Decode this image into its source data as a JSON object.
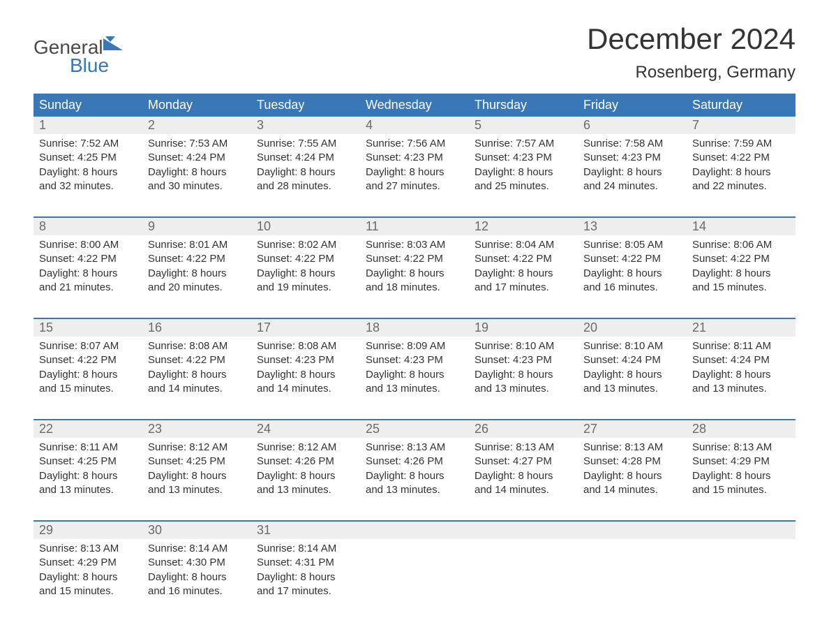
{
  "logo": {
    "word1": "General",
    "word2": "Blue",
    "flag_color": "#3a77b7",
    "text_color1": "#4a4a4a",
    "text_color2": "#3a77b7"
  },
  "title": {
    "month": "December 2024",
    "location": "Rosenberg, Germany",
    "title_fontsize": 42,
    "location_fontsize": 24,
    "title_color": "#333333"
  },
  "colors": {
    "header_bg": "#3a77b7",
    "header_text": "#ffffff",
    "daynum_bg": "#eeeeee",
    "daynum_text": "#6a6a6a",
    "body_text": "#333333",
    "week_border": "#3a77b7",
    "page_bg": "#ffffff"
  },
  "layout": {
    "columns": 7,
    "body_fontsize": 15,
    "header_fontsize": 18,
    "daynum_fontsize": 18
  },
  "day_names": [
    "Sunday",
    "Monday",
    "Tuesday",
    "Wednesday",
    "Thursday",
    "Friday",
    "Saturday"
  ],
  "weeks": [
    {
      "days": [
        {
          "n": "1",
          "sunrise": "Sunrise: 7:52 AM",
          "sunset": "Sunset: 4:25 PM",
          "dl1": "Daylight: 8 hours",
          "dl2": "and 32 minutes."
        },
        {
          "n": "2",
          "sunrise": "Sunrise: 7:53 AM",
          "sunset": "Sunset: 4:24 PM",
          "dl1": "Daylight: 8 hours",
          "dl2": "and 30 minutes."
        },
        {
          "n": "3",
          "sunrise": "Sunrise: 7:55 AM",
          "sunset": "Sunset: 4:24 PM",
          "dl1": "Daylight: 8 hours",
          "dl2": "and 28 minutes."
        },
        {
          "n": "4",
          "sunrise": "Sunrise: 7:56 AM",
          "sunset": "Sunset: 4:23 PM",
          "dl1": "Daylight: 8 hours",
          "dl2": "and 27 minutes."
        },
        {
          "n": "5",
          "sunrise": "Sunrise: 7:57 AM",
          "sunset": "Sunset: 4:23 PM",
          "dl1": "Daylight: 8 hours",
          "dl2": "and 25 minutes."
        },
        {
          "n": "6",
          "sunrise": "Sunrise: 7:58 AM",
          "sunset": "Sunset: 4:23 PM",
          "dl1": "Daylight: 8 hours",
          "dl2": "and 24 minutes."
        },
        {
          "n": "7",
          "sunrise": "Sunrise: 7:59 AM",
          "sunset": "Sunset: 4:22 PM",
          "dl1": "Daylight: 8 hours",
          "dl2": "and 22 minutes."
        }
      ]
    },
    {
      "days": [
        {
          "n": "8",
          "sunrise": "Sunrise: 8:00 AM",
          "sunset": "Sunset: 4:22 PM",
          "dl1": "Daylight: 8 hours",
          "dl2": "and 21 minutes."
        },
        {
          "n": "9",
          "sunrise": "Sunrise: 8:01 AM",
          "sunset": "Sunset: 4:22 PM",
          "dl1": "Daylight: 8 hours",
          "dl2": "and 20 minutes."
        },
        {
          "n": "10",
          "sunrise": "Sunrise: 8:02 AM",
          "sunset": "Sunset: 4:22 PM",
          "dl1": "Daylight: 8 hours",
          "dl2": "and 19 minutes."
        },
        {
          "n": "11",
          "sunrise": "Sunrise: 8:03 AM",
          "sunset": "Sunset: 4:22 PM",
          "dl1": "Daylight: 8 hours",
          "dl2": "and 18 minutes."
        },
        {
          "n": "12",
          "sunrise": "Sunrise: 8:04 AM",
          "sunset": "Sunset: 4:22 PM",
          "dl1": "Daylight: 8 hours",
          "dl2": "and 17 minutes."
        },
        {
          "n": "13",
          "sunrise": "Sunrise: 8:05 AM",
          "sunset": "Sunset: 4:22 PM",
          "dl1": "Daylight: 8 hours",
          "dl2": "and 16 minutes."
        },
        {
          "n": "14",
          "sunrise": "Sunrise: 8:06 AM",
          "sunset": "Sunset: 4:22 PM",
          "dl1": "Daylight: 8 hours",
          "dl2": "and 15 minutes."
        }
      ]
    },
    {
      "days": [
        {
          "n": "15",
          "sunrise": "Sunrise: 8:07 AM",
          "sunset": "Sunset: 4:22 PM",
          "dl1": "Daylight: 8 hours",
          "dl2": "and 15 minutes."
        },
        {
          "n": "16",
          "sunrise": "Sunrise: 8:08 AM",
          "sunset": "Sunset: 4:22 PM",
          "dl1": "Daylight: 8 hours",
          "dl2": "and 14 minutes."
        },
        {
          "n": "17",
          "sunrise": "Sunrise: 8:08 AM",
          "sunset": "Sunset: 4:23 PM",
          "dl1": "Daylight: 8 hours",
          "dl2": "and 14 minutes."
        },
        {
          "n": "18",
          "sunrise": "Sunrise: 8:09 AM",
          "sunset": "Sunset: 4:23 PM",
          "dl1": "Daylight: 8 hours",
          "dl2": "and 13 minutes."
        },
        {
          "n": "19",
          "sunrise": "Sunrise: 8:10 AM",
          "sunset": "Sunset: 4:23 PM",
          "dl1": "Daylight: 8 hours",
          "dl2": "and 13 minutes."
        },
        {
          "n": "20",
          "sunrise": "Sunrise: 8:10 AM",
          "sunset": "Sunset: 4:24 PM",
          "dl1": "Daylight: 8 hours",
          "dl2": "and 13 minutes."
        },
        {
          "n": "21",
          "sunrise": "Sunrise: 8:11 AM",
          "sunset": "Sunset: 4:24 PM",
          "dl1": "Daylight: 8 hours",
          "dl2": "and 13 minutes."
        }
      ]
    },
    {
      "days": [
        {
          "n": "22",
          "sunrise": "Sunrise: 8:11 AM",
          "sunset": "Sunset: 4:25 PM",
          "dl1": "Daylight: 8 hours",
          "dl2": "and 13 minutes."
        },
        {
          "n": "23",
          "sunrise": "Sunrise: 8:12 AM",
          "sunset": "Sunset: 4:25 PM",
          "dl1": "Daylight: 8 hours",
          "dl2": "and 13 minutes."
        },
        {
          "n": "24",
          "sunrise": "Sunrise: 8:12 AM",
          "sunset": "Sunset: 4:26 PM",
          "dl1": "Daylight: 8 hours",
          "dl2": "and 13 minutes."
        },
        {
          "n": "25",
          "sunrise": "Sunrise: 8:13 AM",
          "sunset": "Sunset: 4:26 PM",
          "dl1": "Daylight: 8 hours",
          "dl2": "and 13 minutes."
        },
        {
          "n": "26",
          "sunrise": "Sunrise: 8:13 AM",
          "sunset": "Sunset: 4:27 PM",
          "dl1": "Daylight: 8 hours",
          "dl2": "and 14 minutes."
        },
        {
          "n": "27",
          "sunrise": "Sunrise: 8:13 AM",
          "sunset": "Sunset: 4:28 PM",
          "dl1": "Daylight: 8 hours",
          "dl2": "and 14 minutes."
        },
        {
          "n": "28",
          "sunrise": "Sunrise: 8:13 AM",
          "sunset": "Sunset: 4:29 PM",
          "dl1": "Daylight: 8 hours",
          "dl2": "and 15 minutes."
        }
      ]
    },
    {
      "days": [
        {
          "n": "29",
          "sunrise": "Sunrise: 8:13 AM",
          "sunset": "Sunset: 4:29 PM",
          "dl1": "Daylight: 8 hours",
          "dl2": "and 15 minutes."
        },
        {
          "n": "30",
          "sunrise": "Sunrise: 8:14 AM",
          "sunset": "Sunset: 4:30 PM",
          "dl1": "Daylight: 8 hours",
          "dl2": "and 16 minutes."
        },
        {
          "n": "31",
          "sunrise": "Sunrise: 8:14 AM",
          "sunset": "Sunset: 4:31 PM",
          "dl1": "Daylight: 8 hours",
          "dl2": "and 17 minutes."
        },
        {
          "n": "",
          "sunrise": "",
          "sunset": "",
          "dl1": "",
          "dl2": ""
        },
        {
          "n": "",
          "sunrise": "",
          "sunset": "",
          "dl1": "",
          "dl2": ""
        },
        {
          "n": "",
          "sunrise": "",
          "sunset": "",
          "dl1": "",
          "dl2": ""
        },
        {
          "n": "",
          "sunrise": "",
          "sunset": "",
          "dl1": "",
          "dl2": ""
        }
      ]
    }
  ]
}
